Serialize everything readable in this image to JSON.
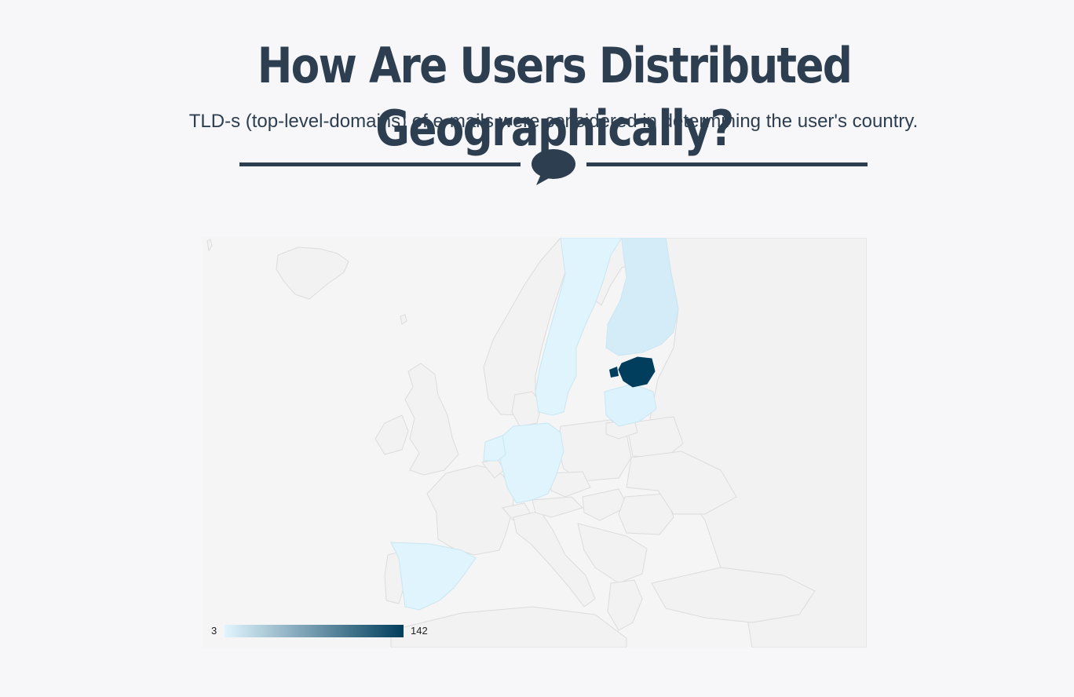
{
  "header": {
    "title": "How Are Users Distributed Geographically?",
    "subtitle": "TLD-s (top-level-domains) of e-mails were considered in determining the user's country."
  },
  "divider": {
    "icon": "speech-bubble-icon",
    "color": "#2c3e50"
  },
  "map": {
    "region": "Europe",
    "legend": {
      "min": "3",
      "max": "142",
      "color_low": "#e1f5fe",
      "color_high": "#013d5c"
    },
    "highlighted_countries": [
      {
        "country": "Estonia",
        "level": "max"
      },
      {
        "country": "Finland",
        "level": "low"
      },
      {
        "country": "Sweden",
        "level": "low"
      },
      {
        "country": "Latvia",
        "level": "low"
      },
      {
        "country": "Germany",
        "level": "low"
      },
      {
        "country": "Netherlands",
        "level": "low"
      },
      {
        "country": "Spain",
        "level": "low"
      }
    ],
    "colors": {
      "background": "#f5f5f5",
      "land_default": "#f2f2f2",
      "border": "#dcdcdc",
      "low_fill": "#dff4fd",
      "finland_fill": "#d3ecf8",
      "latvia_fill": "#dcf2fc",
      "max_fill": "#013d5c"
    }
  }
}
